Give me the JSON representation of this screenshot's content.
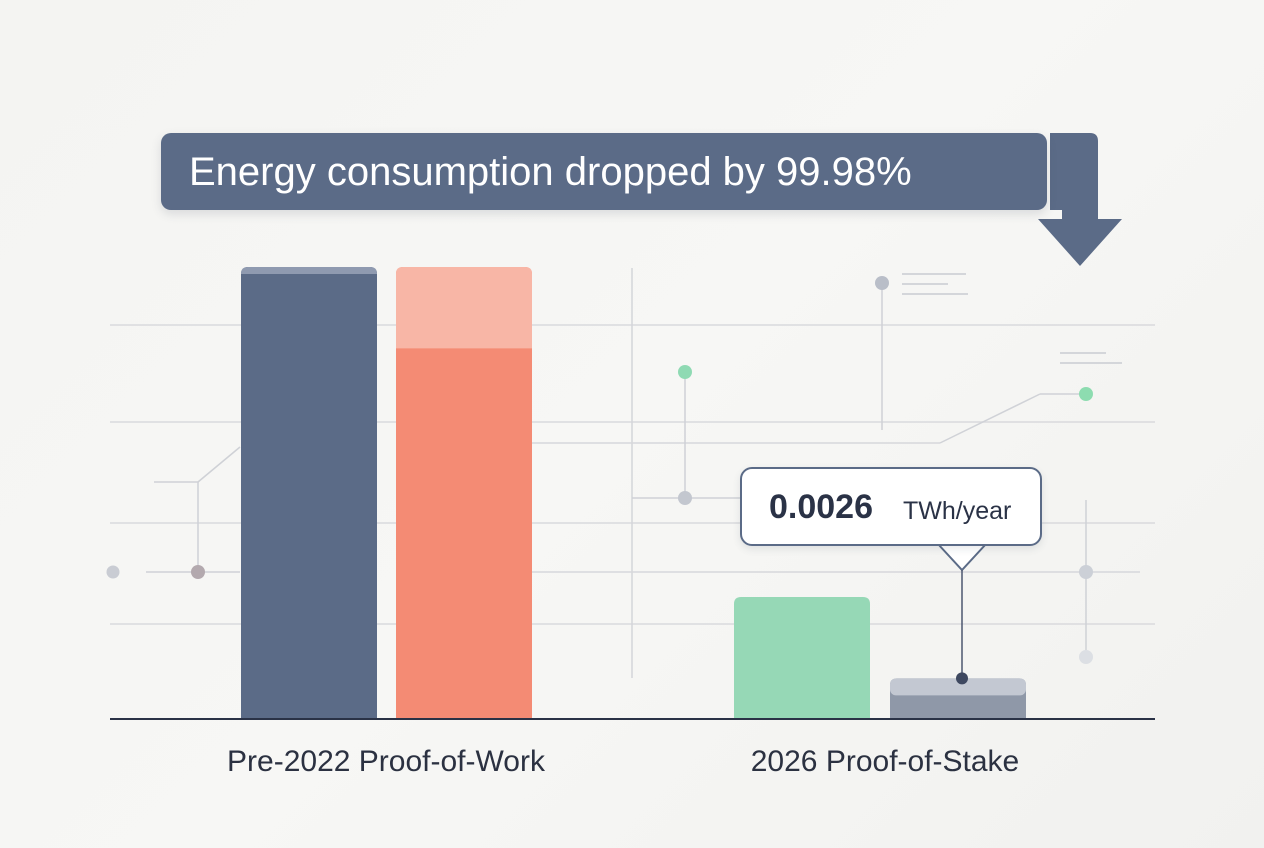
{
  "chart_data": {
    "type": "bar",
    "title": "Energy consumption dropped by 99.98%",
    "categories": [
      "Pre-2022 Proof-of-Work",
      "2026 Proof-of-Stake"
    ],
    "series": [
      {
        "name": "series-a",
        "color": "#5b6b87",
        "values": [
          100,
          null
        ]
      },
      {
        "name": "series-b",
        "color": "#f48b74",
        "highlight_color": "#f8b6a6",
        "values": [
          100,
          null
        ]
      },
      {
        "name": "series-c",
        "color": "#96d8b6",
        "values": [
          null,
          27
        ]
      },
      {
        "name": "series-d",
        "color": "#8f98a8",
        "values": [
          null,
          9
        ]
      }
    ],
    "series_b_highlight_base": 82,
    "ylim": [
      0,
      100
    ],
    "annotation": {
      "value": "0.0026",
      "unit": "TWh/year",
      "target_category": "2026 Proof-of-Stake",
      "target_series": "series-d"
    },
    "xlabel": "",
    "ylabel": ""
  },
  "colors": {
    "banner": "#5b6b87",
    "axis": "#2a3246",
    "grid": "#d8d9dc",
    "accent_green": "#8ddcb0",
    "dot_grey": "#b7bcc6"
  }
}
